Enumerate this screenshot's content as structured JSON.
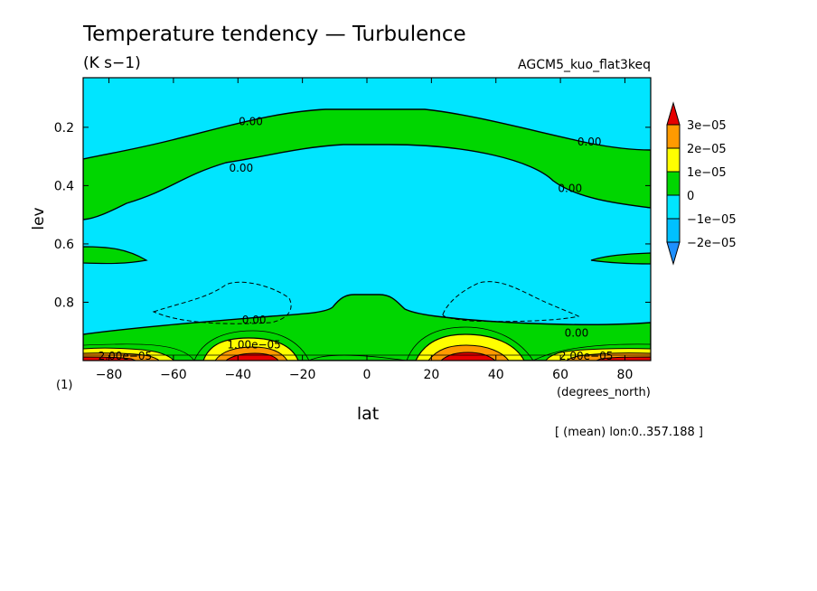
{
  "chart_data": {
    "type": "contour",
    "title": "Temperature tendency — Turbulence",
    "units": "(K s−1)",
    "experiment": "AGCM5_kuo_flat3keq",
    "xlabel": "lat",
    "xunits": "(degrees_north)",
    "ylabel": "lev",
    "ylevel_note": "(1)",
    "subtitle_note": "[ (mean) lon:0..357.188 ]",
    "xlim": [
      -88,
      88
    ],
    "ylim": [
      1.0,
      0.03
    ],
    "x_ticks": [
      -80,
      -60,
      -40,
      -20,
      0,
      20,
      40,
      60,
      80
    ],
    "x_tick_labels": [
      "−80",
      "−60",
      "−40",
      "−20",
      "0",
      "20",
      "40",
      "60",
      "80"
    ],
    "y_ticks": [
      0.2,
      0.4,
      0.6,
      0.8
    ],
    "y_tick_labels": [
      "0.2",
      "0.4",
      "0.6",
      "0.8"
    ],
    "colorbar": {
      "levels": [
        -2e-05,
        -1e-05,
        0,
        1e-05,
        2e-05,
        3e-05
      ],
      "labels": [
        "−2e−05",
        "−1e−05",
        "0",
        "1e−05",
        "2e−05",
        "3e−05"
      ],
      "colors": [
        "#1e90ff",
        "#00e5ff",
        "#00d600",
        "#ffff00",
        "#ff9a00",
        "#e60000",
        "#00c0ff"
      ],
      "extend": "both"
    },
    "contour_labels": [
      {
        "text": "0.00",
        "lat": -36,
        "lev": 0.18
      },
      {
        "text": "0.00",
        "lat": -39,
        "lev": 0.34
      },
      {
        "text": "0.00",
        "lat": 69,
        "lev": 0.25
      },
      {
        "text": "0.00",
        "lat": 63,
        "lev": 0.41
      },
      {
        "text": "0.00",
        "lat": -35,
        "lev": 0.86
      },
      {
        "text": "0.00",
        "lat": 65,
        "lev": 0.905
      },
      {
        "text": "1.00e−05",
        "lat": -35,
        "lev": 0.945
      },
      {
        "text": "2.00e−05",
        "lat": -75,
        "lev": 0.985
      },
      {
        "text": "2.00e−05",
        "lat": 68,
        "lev": 0.985
      }
    ]
  }
}
